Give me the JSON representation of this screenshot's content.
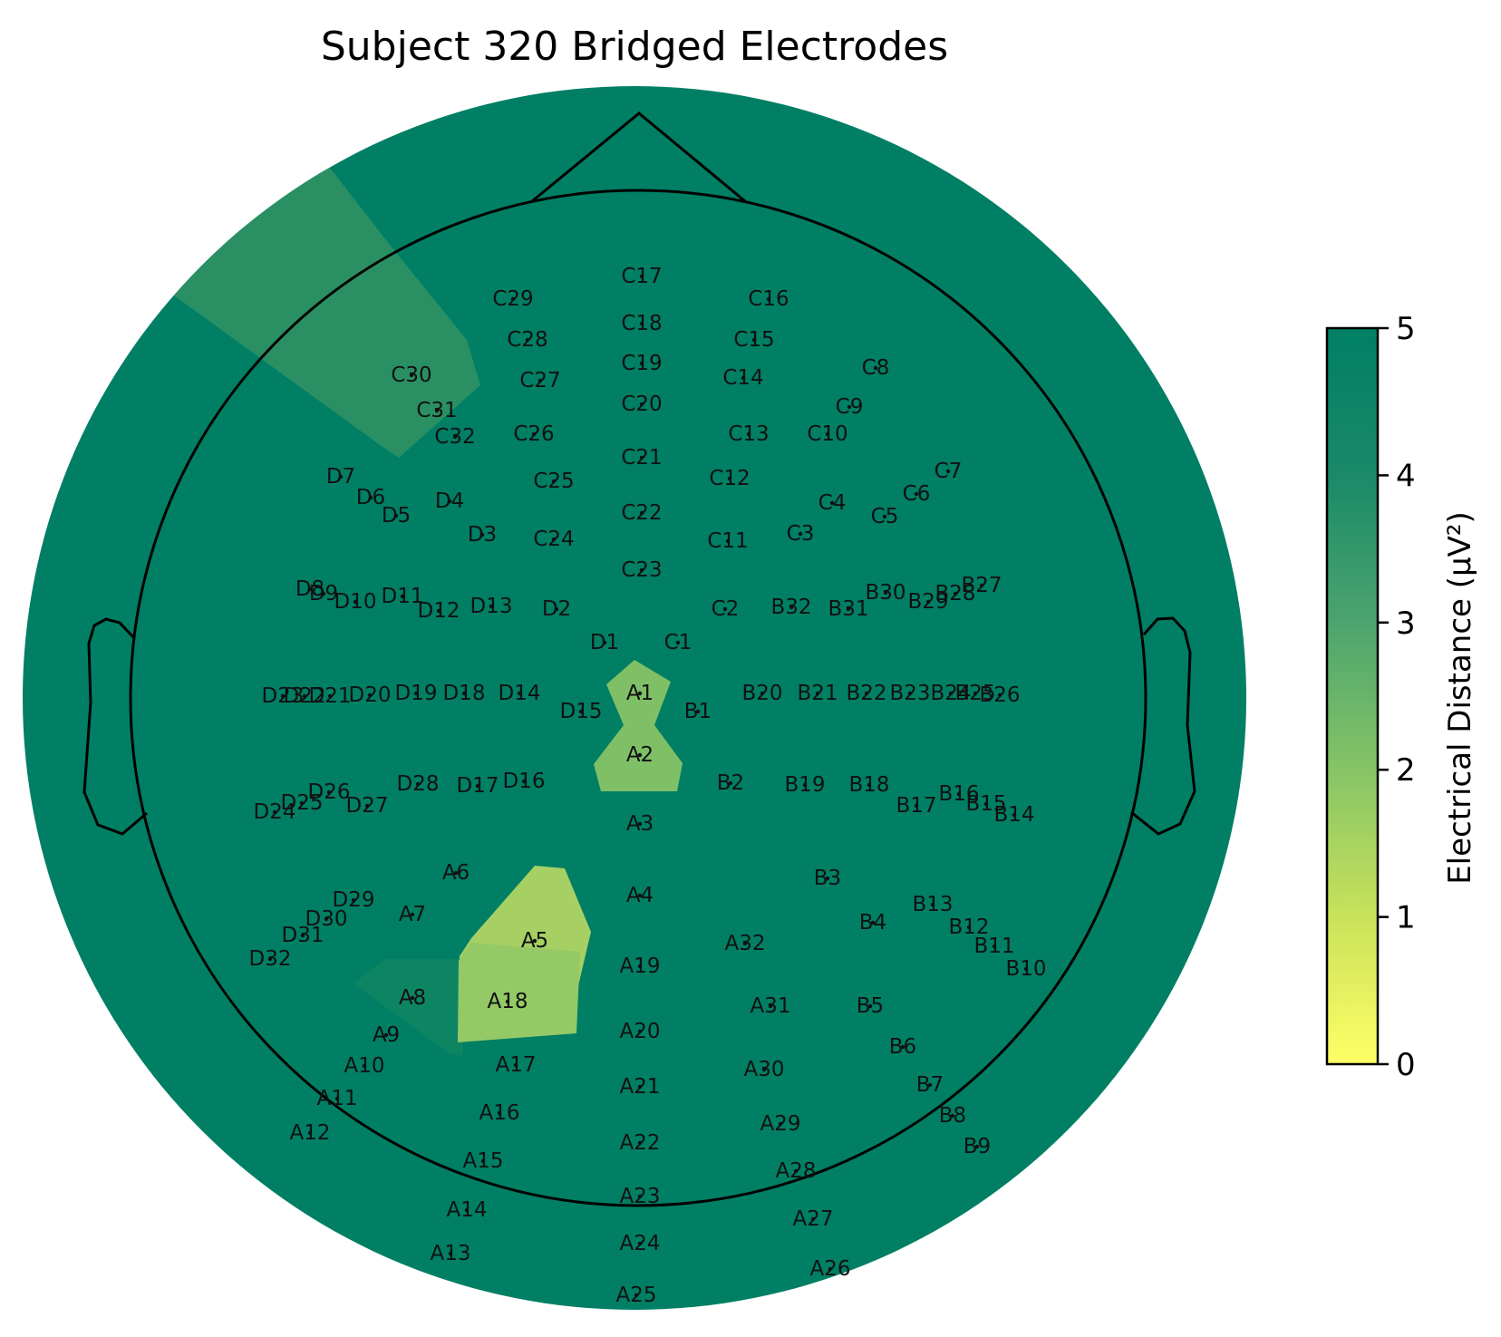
{
  "chart_data": {
    "type": "topomap",
    "title": "Subject 320 Bridged Electrodes",
    "colorbar": {
      "label": "Electrical Distance (μV²)",
      "min": 0,
      "max": 5,
      "ticks": [
        "0",
        "1",
        "2",
        "3",
        "4",
        "5"
      ],
      "colors": [
        "#ffff66",
        "#c9e25a",
        "#86c466",
        "#4ca46e",
        "#1a8a68",
        "#007f64"
      ]
    },
    "background_value": 5,
    "bridged_regions": [
      {
        "electrodes": [
          "A1",
          "A2"
        ],
        "value": 2.5
      },
      {
        "electrodes": [
          "A5",
          "A18"
        ],
        "value": 2.3
      },
      {
        "electrodes": [
          "A8"
        ],
        "value": 4.6
      },
      {
        "electrodes": [
          "C30",
          "C31"
        ],
        "value": 4.0
      }
    ],
    "electrodes": [
      "C17",
      "C29",
      "C16",
      "C18",
      "C28",
      "C15",
      "C19",
      "C30",
      "C27",
      "C14",
      "C8",
      "C20",
      "C31",
      "C9",
      "C32",
      "C26",
      "C13",
      "C10",
      "C21",
      "D7",
      "C7",
      "C12",
      "C25",
      "D6",
      "D4",
      "C6",
      "C4",
      "D5",
      "C22",
      "C5",
      "D3",
      "C24",
      "C3",
      "C11",
      "C23",
      "D8",
      "B27",
      "D9",
      "D11",
      "B30",
      "B28",
      "D10",
      "B29",
      "D13",
      "D2",
      "C2",
      "B32",
      "B31",
      "D12",
      "D1",
      "C1",
      "D23",
      "D22",
      "D21",
      "D20",
      "D19",
      "D18",
      "D14",
      "A1",
      "B20",
      "B21",
      "B22",
      "B23",
      "B24",
      "B25",
      "B26",
      "D15",
      "B1",
      "A2",
      "D28",
      "D26",
      "D16",
      "B2",
      "B19",
      "B18",
      "D17",
      "B16",
      "D25",
      "D27",
      "B15",
      "D24",
      "B17",
      "B14",
      "A3",
      "A6",
      "B3",
      "D29",
      "A4",
      "B13",
      "D30",
      "A7",
      "B4",
      "B12",
      "D31",
      "A5",
      "A32",
      "B11",
      "D32",
      "A19",
      "B10",
      "A8",
      "A18",
      "A31",
      "B5",
      "A9",
      "A20",
      "B6",
      "A10",
      "A17",
      "A30",
      "B7",
      "A21",
      "A11",
      "A16",
      "B8",
      "A29",
      "A12",
      "A22",
      "B9",
      "A15",
      "A28",
      "A23",
      "A14",
      "A27",
      "A24",
      "A13",
      "A26",
      "A25"
    ]
  }
}
